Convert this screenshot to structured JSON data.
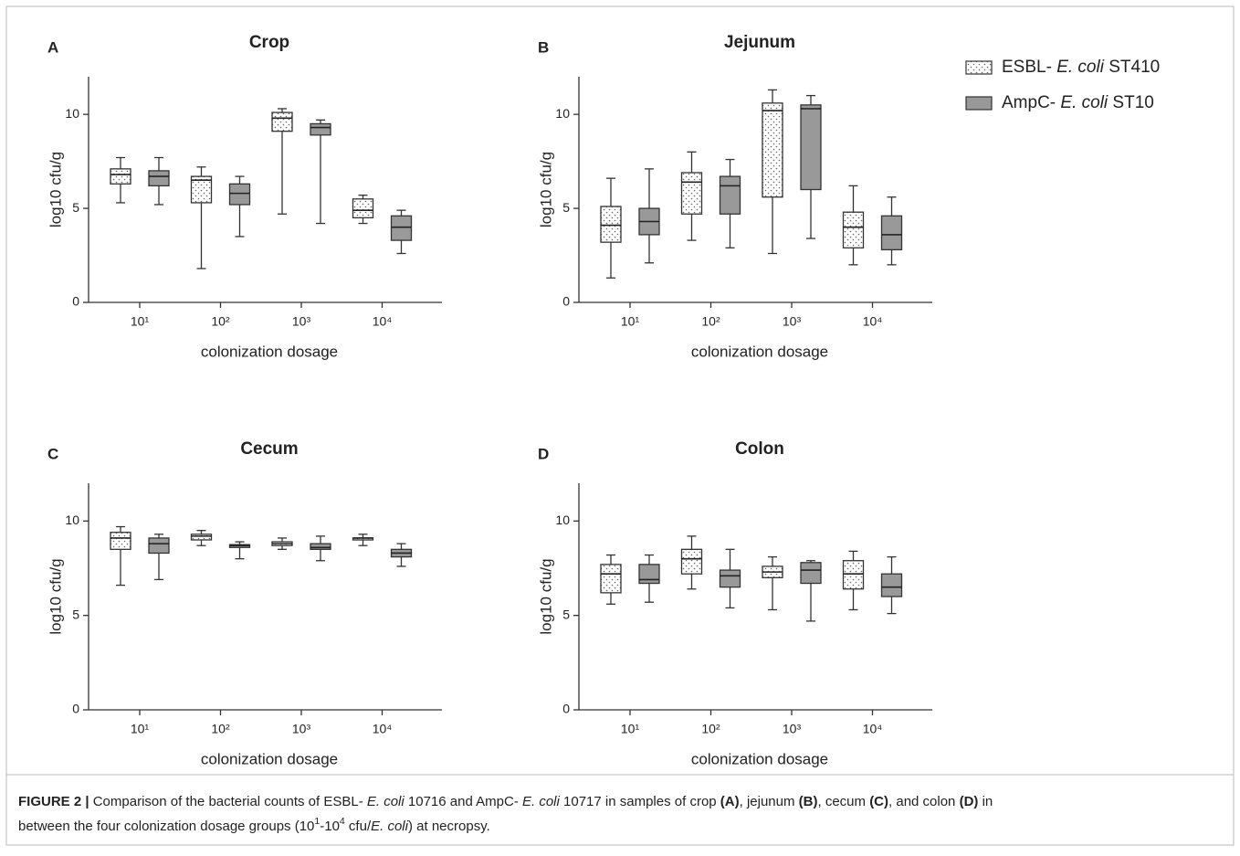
{
  "legend": {
    "series": [
      {
        "name": [
          {
            "text": "ESBL- "
          },
          {
            "text": "E. coli",
            "italic": true
          },
          {
            "text": " ST410"
          }
        ],
        "color": "#ffffff",
        "pattern": "dotted"
      },
      {
        "name": [
          {
            "text": "AmpC- "
          },
          {
            "text": "E. coli",
            "italic": true
          },
          {
            "text": " ST10"
          }
        ],
        "color": "#999999",
        "pattern": "solid"
      }
    ]
  },
  "chart_data": [
    {
      "type": "box",
      "panel": "A",
      "title": "Crop",
      "x_label": "colonization dosage",
      "y_label": "log10 cfu/g",
      "categories": [
        "10¹",
        "10²",
        "10³",
        "10⁴"
      ],
      "ylim": [
        0,
        12
      ],
      "yticks": [
        0,
        5,
        10
      ],
      "series": [
        {
          "values": [
            {
              "min": 5.3,
              "q1": 6.3,
              "median": 6.8,
              "q3": 7.1,
              "max": 7.7
            },
            {
              "min": 1.8,
              "q1": 5.3,
              "median": 6.5,
              "q3": 6.7,
              "max": 7.2
            },
            {
              "min": 4.7,
              "q1": 9.1,
              "median": 9.8,
              "q3": 10.1,
              "max": 10.3
            },
            {
              "min": 4.2,
              "q1": 4.5,
              "median": 4.9,
              "q3": 5.5,
              "max": 5.7
            }
          ]
        },
        {
          "values": [
            {
              "min": 5.2,
              "q1": 6.2,
              "median": 6.7,
              "q3": 7.0,
              "max": 7.7
            },
            {
              "min": 3.5,
              "q1": 5.2,
              "median": 5.8,
              "q3": 6.3,
              "max": 6.7
            },
            {
              "min": 4.2,
              "q1": 8.9,
              "median": 9.3,
              "q3": 9.5,
              "max": 9.7
            },
            {
              "min": 2.6,
              "q1": 3.3,
              "median": 4.0,
              "q3": 4.6,
              "max": 4.9
            }
          ]
        }
      ]
    },
    {
      "type": "box",
      "panel": "B",
      "title": "Jejunum",
      "x_label": "colonization dosage",
      "y_label": "log10 cfu/g",
      "categories": [
        "10¹",
        "10²",
        "10³",
        "10⁴"
      ],
      "ylim": [
        0,
        12
      ],
      "yticks": [
        0,
        5,
        10
      ],
      "series": [
        {
          "values": [
            {
              "min": 1.3,
              "q1": 3.2,
              "median": 4.1,
              "q3": 5.1,
              "max": 6.6
            },
            {
              "min": 3.3,
              "q1": 4.7,
              "median": 6.4,
              "q3": 6.9,
              "max": 8.0
            },
            {
              "min": 2.6,
              "q1": 5.6,
              "median": 10.2,
              "q3": 10.6,
              "max": 11.3
            },
            {
              "min": 2.0,
              "q1": 2.9,
              "median": 4.0,
              "q3": 4.8,
              "max": 6.2
            }
          ]
        },
        {
          "values": [
            {
              "min": 2.1,
              "q1": 3.6,
              "median": 4.3,
              "q3": 5.0,
              "max": 7.1
            },
            {
              "min": 2.9,
              "q1": 4.7,
              "median": 6.2,
              "q3": 6.7,
              "max": 7.6
            },
            {
              "min": 3.4,
              "q1": 6.0,
              "median": 10.3,
              "q3": 10.5,
              "max": 11.0
            },
            {
              "min": 2.0,
              "q1": 2.8,
              "median": 3.6,
              "q3": 4.6,
              "max": 5.6
            }
          ]
        }
      ]
    },
    {
      "type": "box",
      "panel": "C",
      "title": "Cecum",
      "x_label": "colonization dosage",
      "y_label": "log10 cfu/g",
      "categories": [
        "10¹",
        "10²",
        "10³",
        "10⁴"
      ],
      "ylim": [
        0,
        12
      ],
      "yticks": [
        0,
        5,
        10
      ],
      "series": [
        {
          "values": [
            {
              "min": 6.6,
              "q1": 8.5,
              "median": 9.1,
              "q3": 9.4,
              "max": 9.7
            },
            {
              "min": 8.7,
              "q1": 9.0,
              "median": 9.2,
              "q3": 9.3,
              "max": 9.5
            },
            {
              "min": 8.5,
              "q1": 8.7,
              "median": 8.8,
              "q3": 8.9,
              "max": 9.1
            },
            {
              "min": 8.7,
              "q1": 9.0,
              "median": 9.1,
              "q3": 9.1,
              "max": 9.3
            }
          ]
        },
        {
          "values": [
            {
              "min": 6.9,
              "q1": 8.3,
              "median": 8.8,
              "q3": 9.1,
              "max": 9.3
            },
            {
              "min": 8.0,
              "q1": 8.6,
              "median": 8.7,
              "q3": 8.75,
              "max": 8.9
            },
            {
              "min": 7.9,
              "q1": 8.5,
              "median": 8.6,
              "q3": 8.8,
              "max": 9.2
            },
            {
              "min": 7.6,
              "q1": 8.1,
              "median": 8.3,
              "q3": 8.5,
              "max": 8.8
            }
          ]
        }
      ]
    },
    {
      "type": "box",
      "panel": "D",
      "title": "Colon",
      "x_label": "colonization dosage",
      "y_label": "log10 cfu/g",
      "categories": [
        "10¹",
        "10²",
        "10³",
        "10⁴"
      ],
      "ylim": [
        0,
        12
      ],
      "yticks": [
        0,
        5,
        10
      ],
      "series": [
        {
          "values": [
            {
              "min": 5.6,
              "q1": 6.2,
              "median": 7.2,
              "q3": 7.7,
              "max": 8.2
            },
            {
              "min": 6.4,
              "q1": 7.2,
              "median": 8.0,
              "q3": 8.5,
              "max": 9.2
            },
            {
              "min": 5.3,
              "q1": 7.0,
              "median": 7.3,
              "q3": 7.6,
              "max": 8.1
            },
            {
              "min": 5.3,
              "q1": 6.4,
              "median": 7.2,
              "q3": 7.9,
              "max": 8.4
            }
          ]
        },
        {
          "values": [
            {
              "min": 5.7,
              "q1": 6.7,
              "median": 6.9,
              "q3": 7.7,
              "max": 8.2
            },
            {
              "min": 5.4,
              "q1": 6.5,
              "median": 7.1,
              "q3": 7.4,
              "max": 8.5
            },
            {
              "min": 4.7,
              "q1": 6.7,
              "median": 7.4,
              "q3": 7.8,
              "max": 7.9
            },
            {
              "min": 5.1,
              "q1": 6.0,
              "median": 6.5,
              "q3": 7.2,
              "max": 8.1
            }
          ]
        }
      ]
    }
  ],
  "caption": {
    "lines": [
      [
        {
          "text": "FIGURE 2 |",
          "bold": true
        },
        {
          "text": " Comparison of the bacterial counts of ESBL- "
        },
        {
          "text": "E. coli",
          "italic": true
        },
        {
          "text": " 10716 and AmpC- "
        },
        {
          "text": "E. coli",
          "italic": true
        },
        {
          "text": " 10717 in samples of crop "
        },
        {
          "text": "(A)",
          "bold": true
        },
        {
          "text": ", jejunum "
        },
        {
          "text": "(B)",
          "bold": true
        },
        {
          "text": ", cecum "
        },
        {
          "text": "(C)",
          "bold": true
        },
        {
          "text": ", and colon "
        },
        {
          "text": "(D)",
          "bold": true
        },
        {
          "text": " in"
        }
      ],
      [
        {
          "text": "between the four colonization dosage groups (10"
        },
        {
          "text": "1",
          "sup": true
        },
        {
          "text": "-10"
        },
        {
          "text": "4",
          "sup": true
        },
        {
          "text": " cfu/"
        },
        {
          "text": "E. coli",
          "italic": true
        },
        {
          "text": ") at necropsy."
        }
      ]
    ]
  }
}
